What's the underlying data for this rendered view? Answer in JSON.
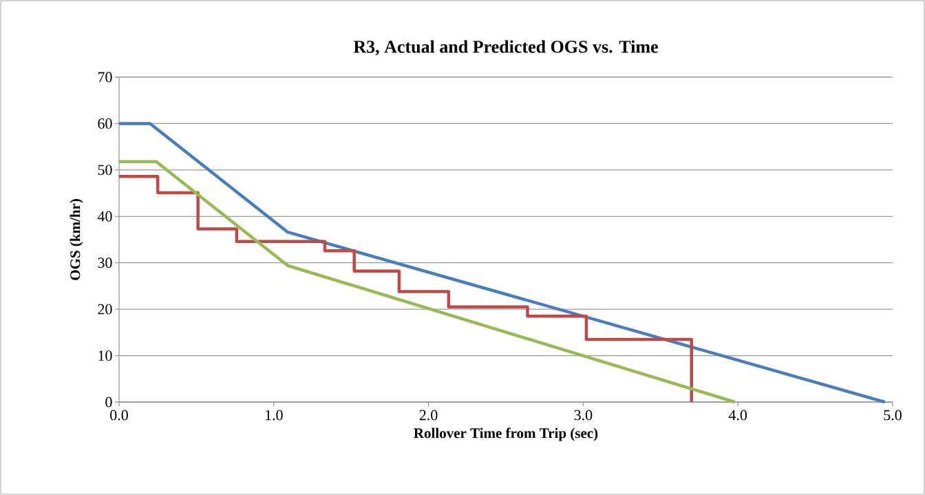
{
  "chart_data": {
    "type": "line",
    "title": "R3, Actual and Predicted OGS vs. Time",
    "xlabel": "Rollover Time from Trip (sec)",
    "ylabel": "OGS (km/hr)",
    "xlim": [
      0,
      5
    ],
    "ylim": [
      0,
      70
    ],
    "xticks": [
      {
        "value": 0,
        "label": "0.0"
      },
      {
        "value": 1,
        "label": "1.0"
      },
      {
        "value": 2,
        "label": "2.0"
      },
      {
        "value": 3,
        "label": "3.0"
      },
      {
        "value": 4,
        "label": "4.0"
      },
      {
        "value": 5,
        "label": "5.0"
      }
    ],
    "yticks": [
      0,
      10,
      20,
      30,
      40,
      50,
      60,
      70
    ],
    "grid": "y",
    "marker": "none",
    "line_style": "solid",
    "series": [
      {
        "color": "#4a7ebb",
        "x": [
          0,
          0.2,
          1.09,
          4.95
        ],
        "values": [
          60,
          60,
          36.6,
          0
        ]
      },
      {
        "type": "step",
        "color": "#be4b48",
        "x": [
          0,
          0.25,
          0.51,
          0.76,
          1.33,
          1.52,
          1.81,
          2.13,
          2.64,
          3.02,
          3.7,
          3.7
        ],
        "values": [
          48.6,
          45.1,
          37.3,
          34.6,
          32.6,
          28.2,
          23.8,
          20.5,
          18.5,
          13.5,
          13.5,
          0
        ]
      },
      {
        "color": "#98b954",
        "x": [
          0,
          0.24,
          1.09,
          3.98
        ],
        "values": [
          51.8,
          51.8,
          29.4,
          0
        ]
      }
    ]
  }
}
